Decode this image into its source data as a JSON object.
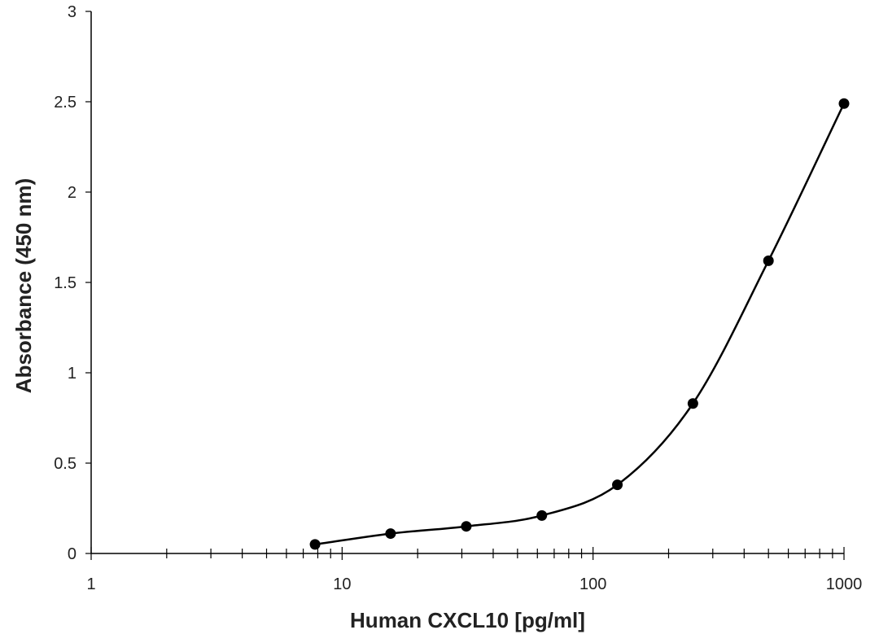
{
  "chart_data": {
    "type": "scatter",
    "xlabel": "Human CXCL10 [pg/ml]",
    "ylabel": "Absorbance (450 nm)",
    "x_scale": "log",
    "xlim": [
      1,
      1000
    ],
    "ylim": [
      0,
      3
    ],
    "x_ticks": [
      "1",
      "10",
      "100",
      "1000"
    ],
    "y_ticks": [
      "0",
      "0.5",
      "1",
      "1.5",
      "2",
      "2.5",
      "3"
    ],
    "grid": false,
    "series": [
      {
        "x": [
          7.8,
          15.6,
          31.25,
          62.5,
          125,
          250,
          500,
          1000
        ],
        "y": [
          0.05,
          0.11,
          0.15,
          0.21,
          0.38,
          0.83,
          1.62,
          2.49
        ]
      }
    ]
  }
}
